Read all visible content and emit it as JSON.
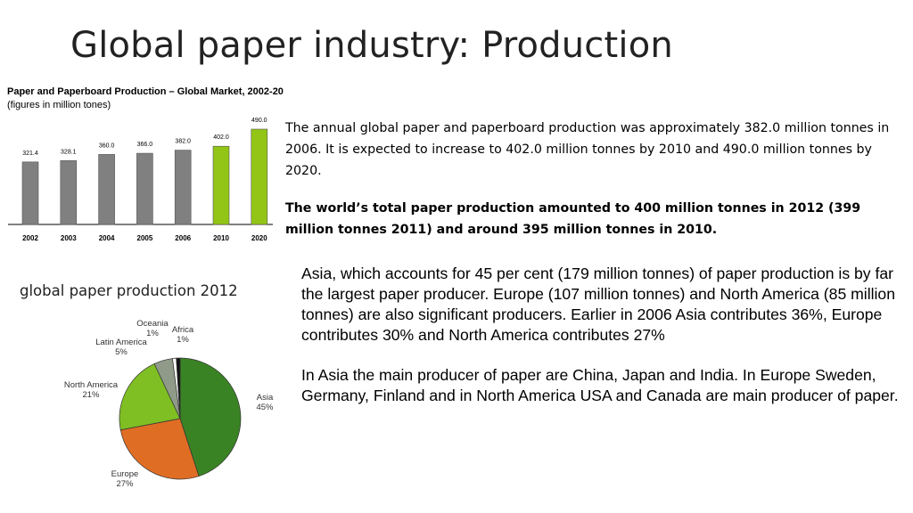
{
  "slide": {
    "title": "Global paper industry: Production",
    "paragraph1": "The annual global paper and paperboard production was approximately 382.0 million tonnes in 2006. It is expected to increase to 402.0 million tonnes by 2010 and 490.0 million tonnes by 2020.",
    "paragraph2": "The world’s total paper production amounted to 400 million tonnes in 2012 (399 million tonnes 2011) and around 395 million tonnes in 2010.",
    "paragraph3": "Asia, which accounts for 45 per cent (179 million tonnes) of paper production is by far the largest paper producer. Europe (107 million tonnes) and North America (85 million tonnes) are also significant producers. Earlier in 2006 Asia contributes 36%, Europe contributes 30% and North America contributes 27%",
    "paragraph4": "In Asia the main producer of paper are China, Japan and India. In Europe Sweden, Germany, Finland and in North America USA and Canada are main producer of paper."
  },
  "chart_data": [
    {
      "type": "bar",
      "title": "Paper and Paperboard Production – Global Market, 2002-20",
      "subtitle": "(figures in million tones)",
      "categories": [
        "2002",
        "2003",
        "2004",
        "2005",
        "2006",
        "2010",
        "2020"
      ],
      "values": [
        321.4,
        328.1,
        360.0,
        366.0,
        382.0,
        402.0,
        490.0
      ],
      "value_labels": [
        "321.4",
        "328.1",
        "360.0",
        "366.0",
        "382.0",
        "402.0",
        "490.0"
      ],
      "bar_colors": [
        "#808080",
        "#808080",
        "#808080",
        "#808080",
        "#808080",
        "#92c516",
        "#92c516"
      ],
      "ylim": [
        0,
        490
      ],
      "grid": false
    },
    {
      "type": "pie",
      "title": "global paper production 2012",
      "slices": [
        {
          "label": "Asia",
          "value": 45,
          "pct_label": "45%",
          "color": "#3a8324"
        },
        {
          "label": "Europe",
          "value": 27,
          "pct_label": "27%",
          "color": "#e06d24"
        },
        {
          "label": "North America",
          "value": 21,
          "pct_label": "21%",
          "color": "#7fbf23"
        },
        {
          "label": "Latin America",
          "value": 5,
          "pct_label": "5%",
          "color": "#8f9a88"
        },
        {
          "label": "Oceania",
          "value": 1,
          "pct_label": "1%",
          "color": "#ffffff"
        },
        {
          "label": "Africa",
          "value": 1,
          "pct_label": "1%",
          "color": "#111111"
        }
      ]
    }
  ]
}
